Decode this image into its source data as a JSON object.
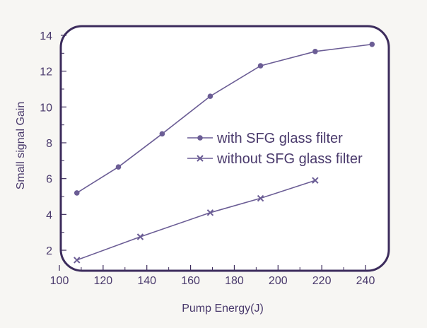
{
  "chart_data": {
    "type": "line",
    "title": "",
    "xlabel": "Pump Energy(J)",
    "ylabel": "Small signal Gain",
    "xlim": [
      100,
      245
    ],
    "ylim": [
      1,
      14.4
    ],
    "xticks": [
      100,
      120,
      140,
      160,
      180,
      200,
      220,
      240
    ],
    "yticks": [
      2,
      4,
      6,
      8,
      10,
      12,
      14
    ],
    "grid": false,
    "legend_position": "center",
    "series": [
      {
        "name": "with SFG glass filter",
        "marker": "dot",
        "x": [
          108,
          127,
          147,
          169,
          192,
          217,
          243
        ],
        "y": [
          5.2,
          6.65,
          8.5,
          10.6,
          12.3,
          13.1,
          13.5
        ]
      },
      {
        "name": "without SFG glass filter",
        "marker": "x",
        "x": [
          108,
          137,
          169,
          192,
          217
        ],
        "y": [
          1.45,
          2.75,
          4.1,
          4.9,
          5.9
        ]
      }
    ],
    "colors": {
      "line": "#6b5d95",
      "frame": "#3c2c5c",
      "text": "#4a3a6c",
      "background": "#ffffff",
      "page": "#f7f6f3"
    }
  }
}
